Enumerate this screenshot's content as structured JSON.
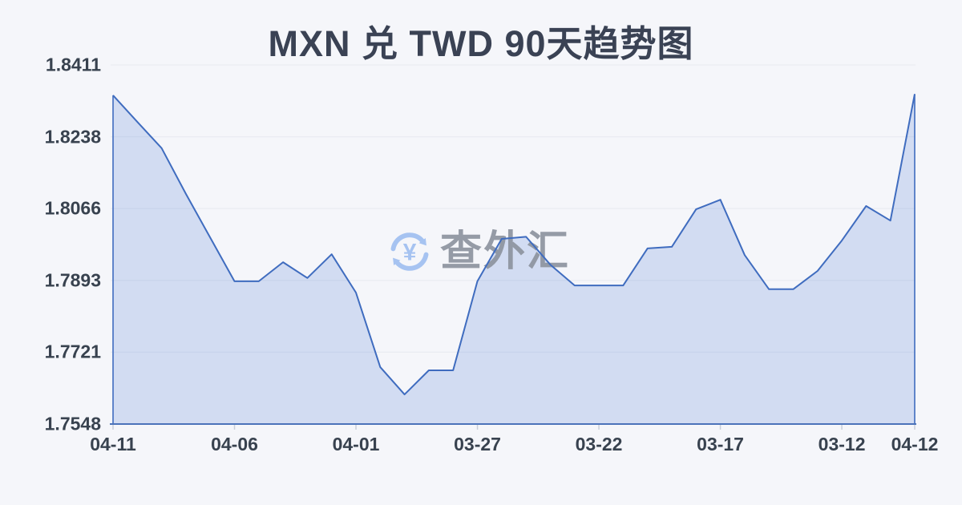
{
  "chart_data": {
    "type": "area",
    "title": "MXN 兑 TWD 90天趋势图",
    "ylabel": "",
    "xlabel": "",
    "ylim": [
      1.7548,
      1.8411
    ],
    "grid": true,
    "legend": false,
    "y_ticks": [
      "1.8411",
      "1.8238",
      "1.8066",
      "1.7893",
      "1.7721",
      "1.7548"
    ],
    "x_tick_labels": [
      {
        "i": 0,
        "label": "04-11"
      },
      {
        "i": 5,
        "label": "04-06"
      },
      {
        "i": 10,
        "label": "04-01"
      },
      {
        "i": 15,
        "label": "03-27"
      },
      {
        "i": 20,
        "label": "03-22"
      },
      {
        "i": 25,
        "label": "03-17"
      },
      {
        "i": 30,
        "label": "03-12"
      },
      {
        "i": 33,
        "label": "04-12"
      }
    ],
    "values": [
      1.8338,
      1.8274,
      1.8211,
      1.8101,
      1.7996,
      1.7891,
      1.7891,
      1.7937,
      1.7899,
      1.7956,
      1.7864,
      1.7685,
      1.7619,
      1.7677,
      1.7677,
      1.7891,
      1.7993,
      1.7998,
      1.7931,
      1.7881,
      1.7881,
      1.7881,
      1.797,
      1.7974,
      1.8064,
      1.8087,
      1.7954,
      1.7872,
      1.7872,
      1.7916,
      1.7989,
      1.8072,
      1.8037,
      1.8341
    ],
    "line_color": "#3f6cbf",
    "fill_color": "#5780d8",
    "fill_opacity": 0.22,
    "grid_color": "#e6e9f0",
    "axis_line_color": "#4c73ba",
    "tick_color": "#c9cfda"
  },
  "watermark": {
    "text": "查外汇",
    "symbol": "¥",
    "icon_color": "#a6c3f1",
    "text_color": "#8d949f"
  },
  "colors": {
    "background": "#f5f6fa",
    "title": "#3a4254",
    "axis_label": "#38424f"
  }
}
